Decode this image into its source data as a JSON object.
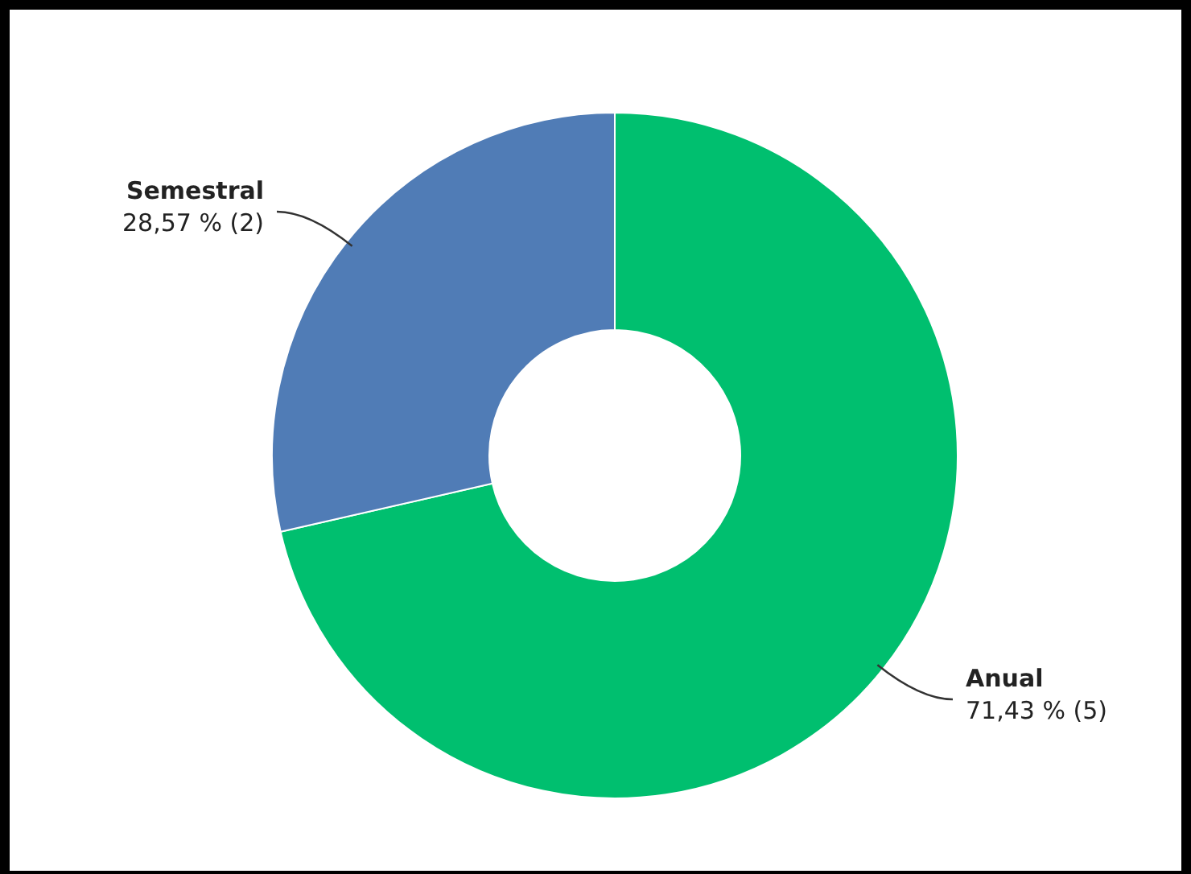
{
  "chart_data": {
    "type": "donut",
    "categories": [
      "Anual",
      "Semestral"
    ],
    "values": [
      5,
      2
    ],
    "colors": [
      "#00bf6f",
      "#507cb6"
    ],
    "value_labels": [
      "71,43 % (5)",
      "28,57 % (2)"
    ],
    "legend": false
  }
}
